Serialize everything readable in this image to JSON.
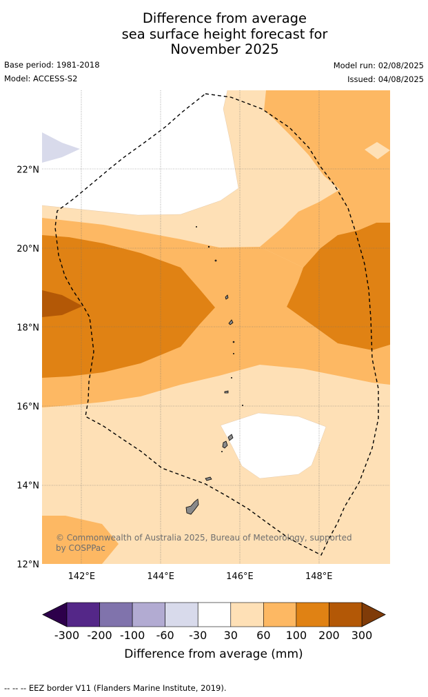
{
  "title": {
    "line1": "Difference from average",
    "line2": "sea surface height forecast for",
    "line3": "November 2025"
  },
  "meta": {
    "base_period": "Base period: 1981-2018",
    "model": "Model: ACCESS-S2",
    "model_run": "Model run: 02/08/2025",
    "issued": "Issued: 04/08/2025"
  },
  "map": {
    "lon_range": [
      141,
      149.8
    ],
    "lat_range": [
      12,
      24
    ],
    "lat_ticks": [
      {
        "value": 22,
        "label": "22°N"
      },
      {
        "value": 20,
        "label": "20°N"
      },
      {
        "value": 18,
        "label": "18°N"
      },
      {
        "value": 16,
        "label": "16°N"
      },
      {
        "value": 14,
        "label": "14°N"
      },
      {
        "value": 12,
        "label": "12°N"
      }
    ],
    "lon_ticks": [
      {
        "value": 142,
        "label": "142°E"
      },
      {
        "value": 144,
        "label": "144°E"
      },
      {
        "value": 146,
        "label": "146°E"
      },
      {
        "value": 148,
        "label": "148°E"
      }
    ],
    "gridlines": true,
    "copyright_line1": "© Commonwealth of Australia 2025, Bureau of Meteorology, supported",
    "copyright_line2": "by COSPPac"
  },
  "colorbar": {
    "title": "Difference from average (mm)",
    "labels": [
      "-300",
      "-200",
      "-100",
      "-60",
      "-30",
      "30",
      "60",
      "100",
      "200",
      "300"
    ],
    "under_color": "#2d004b",
    "over_color": "#7f3b08",
    "colors": [
      "#542788",
      "#8073ac",
      "#b2abd2",
      "#d8daeb",
      "#ffffff",
      "#fee0b6",
      "#fdb863",
      "#e08214",
      "#b35806"
    ]
  },
  "footer": {
    "legend_text": "--  --  -- EEZ border V11 (Flanders Marine Institute, 2019)."
  }
}
